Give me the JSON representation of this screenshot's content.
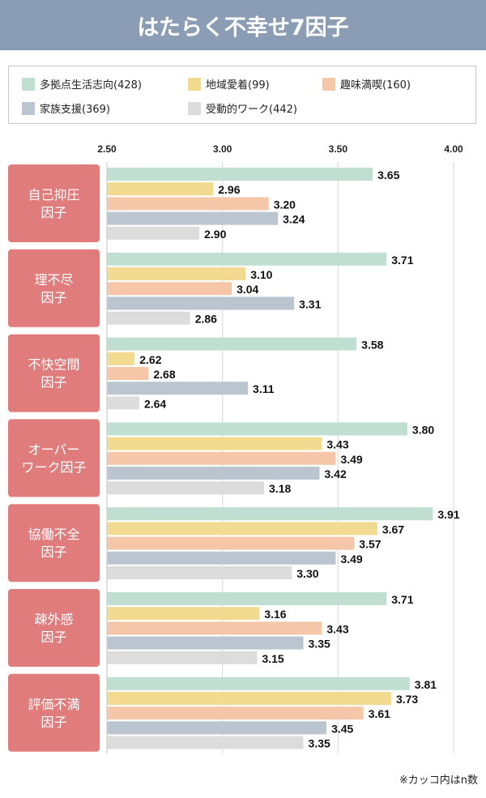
{
  "header": {
    "title": "はたらく不幸せ7因子"
  },
  "footnote": "※カッコ内はn数",
  "legend": [
    {
      "label": "多拠点生活志向(428)",
      "color": "#c0ded1"
    },
    {
      "label": "地域愛着(99)",
      "color": "#f2da91"
    },
    {
      "label": "趣味満喫(160)",
      "color": "#f5c6a8"
    },
    {
      "label": "家族支援(369)",
      "color": "#bac5d0"
    },
    {
      "label": "受動的ワーク(442)",
      "color": "#dcdcdc"
    }
  ],
  "chart_data": {
    "type": "bar",
    "orientation": "horizontal",
    "title": "はたらく不幸せ7因子",
    "xlabel": "",
    "ylabel": "",
    "xlim": [
      2.5,
      4.0
    ],
    "xticks": [
      "2.50",
      "3.00",
      "3.50",
      "4.00"
    ],
    "xtick_values": [
      2.5,
      3.0,
      3.5,
      4.0
    ],
    "grid": true,
    "legend_position": "top",
    "category_color": "#e07c7c",
    "categories": [
      [
        "自己抑圧",
        "因子"
      ],
      [
        "理不尽",
        "因子"
      ],
      [
        "不快空間",
        "因子"
      ],
      [
        "オーバー",
        "ワーク因子"
      ],
      [
        "協働不全",
        "因子"
      ],
      [
        "疎外感",
        "因子"
      ],
      [
        "評価不満",
        "因子"
      ]
    ],
    "series": [
      {
        "name": "多拠点生活志向(428)",
        "color": "#c0ded1",
        "values": [
          3.65,
          3.71,
          3.58,
          3.8,
          3.91,
          3.71,
          3.81
        ]
      },
      {
        "name": "地域愛着(99)",
        "color": "#f2da91",
        "values": [
          2.96,
          3.1,
          2.62,
          3.43,
          3.67,
          3.16,
          3.73
        ]
      },
      {
        "name": "趣味満喫(160)",
        "color": "#f5c6a8",
        "values": [
          3.2,
          3.04,
          2.68,
          3.49,
          3.57,
          3.43,
          3.61
        ]
      },
      {
        "name": "家族支援(369)",
        "color": "#bac5d0",
        "values": [
          3.24,
          3.31,
          3.11,
          3.42,
          3.49,
          3.35,
          3.45
        ]
      },
      {
        "name": "受動的ワーク(442)",
        "color": "#dcdcdc",
        "values": [
          2.9,
          2.86,
          2.64,
          3.18,
          3.3,
          3.15,
          3.35
        ]
      }
    ]
  }
}
